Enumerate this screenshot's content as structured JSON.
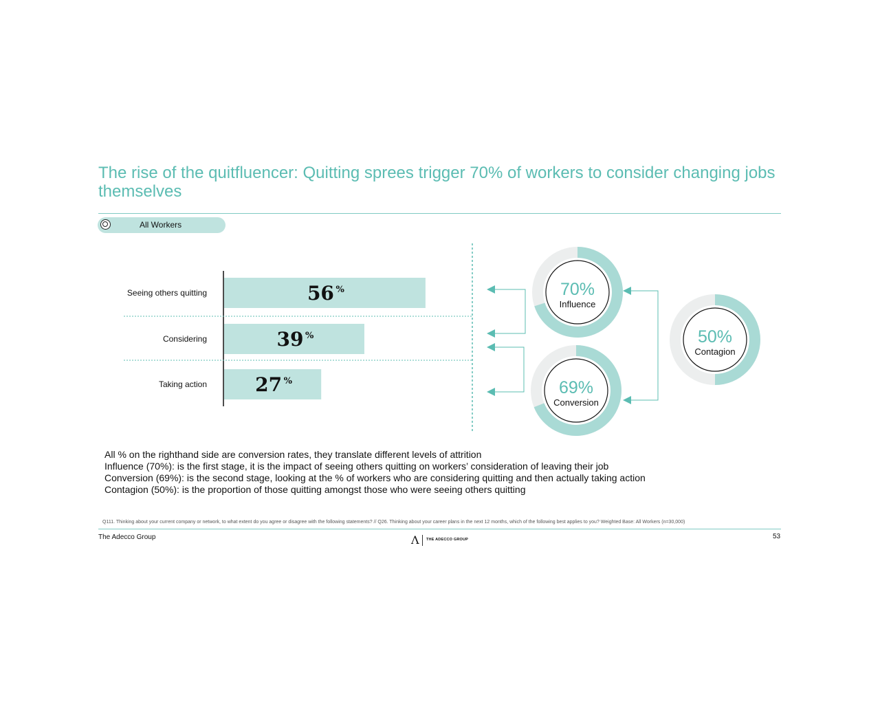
{
  "title": "The rise of the quitfluencer: Quitting sprees trigger 70% of workers to consider changing jobs themselves",
  "filter": {
    "label": "All Workers"
  },
  "chart_data": [
    {
      "type": "bar",
      "orientation": "horizontal",
      "categories": [
        "Seeing others quitting",
        "Considering",
        "Taking action"
      ],
      "values": [
        56,
        39,
        27
      ],
      "value_labels": [
        "56",
        "39",
        "27"
      ],
      "unit": "%",
      "xlim": [
        0,
        100
      ]
    },
    {
      "type": "pie",
      "subtype": "donut",
      "items": [
        {
          "label": "Influence",
          "value": 70,
          "display": "70%"
        },
        {
          "label": "Conversion",
          "value": 69,
          "display": "69%"
        },
        {
          "label": "Contagion",
          "value": 50,
          "display": "50%"
        }
      ],
      "colors": {
        "fill": "#a9dad5",
        "track": "#eceeee",
        "value_text": "#5bbcb2",
        "bar": "#bfe3df",
        "line": "#5bbcb2"
      }
    }
  ],
  "notes": [
    "All % on the righthand side are conversion rates, they translate different levels of attrition",
    "Influence (70%): is the first stage, it is the impact of seeing others quitting on workers’ consideration of leaving their job",
    "Conversion (69%): is the second stage, looking at the % of workers who are considering quitting and then actually taking action",
    "Contagion (50%): is the proportion of those quitting amongst those who were seeing others quitting"
  ],
  "footnote": "Q111. Thinking about your current company or network, to what extent do you agree or disagree with the following statements? // Q26. Thinking about your career plans in the next 12 months, which of the following best applies to you? Weighted Base: All Workers (n=30,000)",
  "footer": {
    "company": "The Adecco Group",
    "page": "53",
    "logo_text": "THE ADECCO GROUP"
  }
}
